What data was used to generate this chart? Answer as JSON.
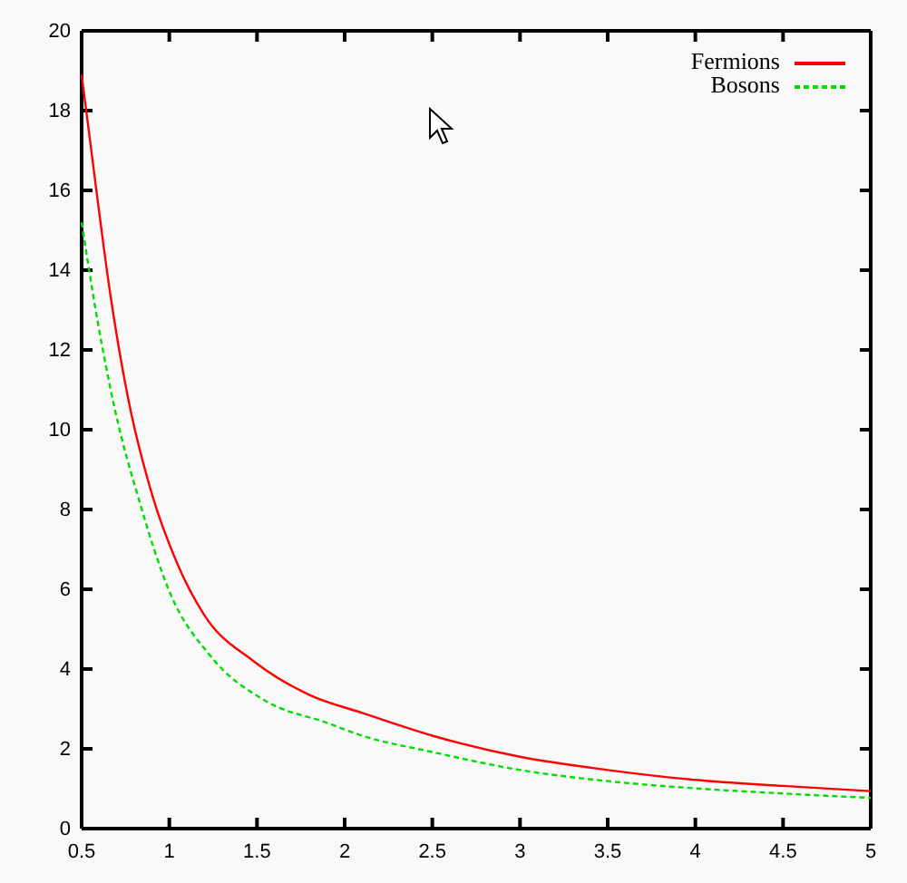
{
  "chart_data": {
    "type": "line",
    "xlim": [
      0.5,
      5
    ],
    "ylim": [
      0,
      20
    ],
    "xticks": [
      0.5,
      1,
      1.5,
      2,
      2.5,
      3,
      3.5,
      4,
      4.5,
      5
    ],
    "yticks": [
      0,
      2,
      4,
      6,
      8,
      10,
      12,
      14,
      16,
      18,
      20
    ],
    "legend": "top right",
    "grid": false,
    "series": [
      {
        "name": "Fermions",
        "color": "#ff0000",
        "line_style": "solid",
        "x": [
          0.5,
          0.59,
          0.66,
          0.76,
          0.9,
          1.04,
          1.2,
          1.48,
          1.8,
          2.1,
          2.5,
          3,
          3.5,
          4,
          4.5,
          5
        ],
        "values": [
          18.9,
          15.8,
          13.5,
          10.9,
          8.4,
          6.7,
          5.35,
          4.2,
          3.35,
          2.9,
          2.33,
          1.8,
          1.47,
          1.22,
          1.07,
          0.94
        ]
      },
      {
        "name": "Bosons",
        "color": "#00dd00",
        "line_style": "dashed",
        "x": [
          0.5,
          0.59,
          0.69,
          0.83,
          1,
          1.24,
          1.55,
          1.9,
          2.1,
          2.5,
          3,
          3.5,
          4,
          4.5,
          5
        ],
        "values": [
          15.2,
          12.75,
          10.5,
          8.2,
          5.95,
          4.3,
          3.2,
          2.65,
          2.33,
          1.92,
          1.47,
          1.19,
          1.01,
          0.88,
          0.77
        ]
      }
    ]
  }
}
